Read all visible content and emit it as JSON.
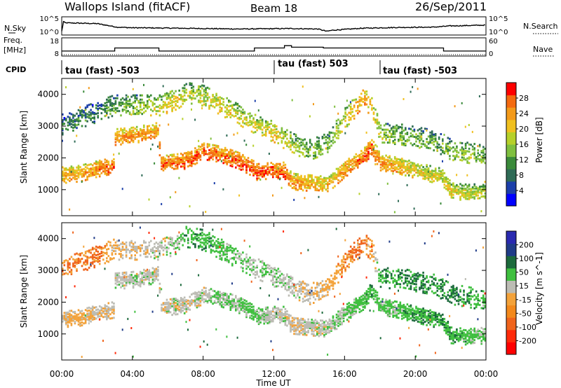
{
  "header": {
    "station": "Wallops Island (fitACF)",
    "beam": "Beam 18",
    "date": "26/Sep/2011"
  },
  "left_labels": {
    "nsky": "N.Sky",
    "freq_line1": "Freq.",
    "freq_line2": "[MHz]",
    "cpid": "CPID"
  },
  "right_labels": {
    "nsearch": "N.Search",
    "nave": "Nave"
  },
  "colors": {
    "power_scale": [
      "#0000ff",
      "#1c3faa",
      "#2f6b56",
      "#3a8a3a",
      "#7fbf3f",
      "#b6d02a",
      "#f0c020",
      "#f39a1a",
      "#f46a10",
      "#ff0000"
    ],
    "velocity_scale": [
      "#2a2ab0",
      "#203c88",
      "#1c6a3c",
      "#3fbf3f",
      "#bcbcb4",
      "#f3a23a",
      "#f3891c",
      "#f0641c",
      "#ff2a0a",
      "#ff0000"
    ]
  },
  "chart_data": [
    {
      "type": "line",
      "name": "noise",
      "ylabel_left": "N.Sky",
      "ylabel_right": "N.Search",
      "ticks_left": [
        "10^5",
        "10^0"
      ],
      "ticks_right": [
        "10^5",
        "10^0"
      ],
      "x_hours": [
        0,
        0.1,
        0.2,
        2,
        3,
        3.1,
        4,
        6,
        8,
        10,
        12,
        13,
        14.5,
        15,
        15.3,
        17,
        19,
        21,
        22,
        24
      ],
      "values_norm": [
        0.15,
        0.78,
        0.7,
        0.65,
        0.45,
        0.42,
        0.38,
        0.36,
        0.33,
        0.3,
        0.32,
        0.33,
        0.3,
        0.15,
        0.22,
        0.35,
        0.4,
        0.42,
        0.5,
        0.55
      ]
    },
    {
      "type": "line",
      "name": "frequency",
      "ylabel_left": "Freq. [MHz]",
      "ylabel_right": "Nave",
      "ticks_left": [
        "18",
        "8"
      ],
      "ticks_right": [
        "60",
        "0"
      ],
      "x_hours": [
        0,
        3.0,
        3.0,
        5.5,
        5.5,
        10.9,
        10.9,
        12.6,
        12.6,
        13.0,
        13.0,
        14.8,
        14.8,
        21.6,
        21.6,
        24
      ],
      "freq_mhz": [
        10.3,
        10.3,
        12.3,
        12.3,
        10.3,
        10.3,
        12.3,
        12.3,
        13.8,
        13.8,
        12.8,
        12.8,
        12.3,
        12.3,
        10.3,
        10.3
      ]
    },
    {
      "type": "table",
      "name": "cpid",
      "segments": [
        {
          "label": "tau (fast) -503",
          "start_hour": 0,
          "end_hour": 12
        },
        {
          "label": "tau (fast) 503",
          "start_hour": 12,
          "end_hour": 18
        },
        {
          "label": "tau (fast) -503",
          "start_hour": 18,
          "end_hour": 24
        }
      ]
    },
    {
      "type": "heatmap",
      "name": "power",
      "ylabel": "Slant Range [km]",
      "colorbar_label": "Power [dB]",
      "colorbar_ticks": [
        "4",
        "8",
        "12",
        "16",
        "20",
        "24",
        "28"
      ],
      "y_ticks": [
        "1000",
        "2000",
        "3000",
        "4000"
      ],
      "ylim_km": [
        180,
        4500
      ],
      "xlim_hours": [
        0,
        24
      ],
      "lower_band": {
        "x_hours": [
          0,
          1,
          2,
          2.9,
          3,
          4,
          5.4,
          5.6,
          7,
          8,
          9,
          10,
          10.8,
          11,
          12,
          12.5,
          13,
          14,
          15,
          16,
          17,
          17.5,
          18,
          19,
          20,
          21.5,
          22,
          23,
          24
        ],
        "range_km": [
          1500,
          1550,
          1700,
          1800,
          2700,
          2750,
          2900,
          1850,
          1950,
          2250,
          2150,
          1950,
          1700,
          1600,
          1650,
          1650,
          1300,
          1250,
          1200,
          1700,
          2050,
          2400,
          1900,
          1800,
          1650,
          1450,
          1000,
          950,
          1000
        ],
        "power_db": [
          22,
          24,
          25,
          27,
          25,
          24,
          23,
          26,
          27,
          28,
          26,
          27,
          28,
          28,
          28,
          27,
          24,
          23,
          22,
          24,
          26,
          28,
          24,
          22,
          20,
          18,
          20,
          18,
          16
        ]
      },
      "upper_band": {
        "x_hours": [
          0,
          1,
          2,
          2.9,
          5.6,
          6.5,
          7,
          8,
          9,
          10,
          11,
          12,
          13,
          14,
          15,
          16,
          17,
          17.5,
          18,
          19,
          20,
          21,
          22,
          23,
          24
        ],
        "range_km": [
          3100,
          3300,
          3500,
          3700,
          3700,
          3900,
          4100,
          4000,
          3700,
          3400,
          3100,
          2850,
          2500,
          2300,
          2500,
          3300,
          3900,
          3700,
          2800,
          2800,
          2700,
          2600,
          2300,
          2200,
          2100
        ],
        "power_db": [
          8,
          10,
          10,
          12,
          18,
          20,
          16,
          18,
          20,
          18,
          18,
          20,
          16,
          14,
          16,
          18,
          24,
          22,
          16,
          14,
          14,
          12,
          14,
          16,
          14
        ]
      }
    },
    {
      "type": "heatmap",
      "name": "velocity",
      "ylabel": "Slant Range [km]",
      "colorbar_label": "Velocity [m s^-1]",
      "colorbar_ticks": [
        "200",
        "100",
        "50",
        "15",
        "-15",
        "-50",
        "-100",
        "-200"
      ],
      "y_ticks": [
        "1000",
        "2000",
        "3000",
        "4000"
      ],
      "ylim_km": [
        180,
        4500
      ],
      "xlim_hours": [
        0,
        24
      ],
      "lower_band": {
        "x_hours": [
          0,
          1,
          2,
          2.9,
          3,
          4,
          5.4,
          5.6,
          7,
          8,
          9,
          10,
          10.8,
          11,
          12,
          12.5,
          13,
          14,
          15,
          16,
          17,
          17.5,
          18,
          19,
          20,
          21.5,
          22,
          23,
          24
        ],
        "range_km": [
          1500,
          1550,
          1700,
          1800,
          2700,
          2750,
          2900,
          1850,
          1950,
          2250,
          2150,
          1950,
          1700,
          1600,
          1650,
          1650,
          1300,
          1250,
          1200,
          1700,
          2050,
          2400,
          1900,
          1800,
          1650,
          1450,
          1000,
          950,
          1000
        ],
        "velocity_ms": [
          -20,
          -30,
          -10,
          -5,
          0,
          5,
          0,
          0,
          0,
          0,
          10,
          20,
          30,
          20,
          0,
          0,
          -10,
          0,
          0,
          20,
          30,
          40,
          20,
          30,
          40,
          50,
          40,
          30,
          20
        ]
      },
      "upper_band": {
        "x_hours": [
          0,
          1,
          2,
          2.9,
          5.6,
          6.5,
          7,
          8,
          9,
          10,
          11,
          12,
          13,
          14,
          15,
          16,
          17,
          17.5,
          18,
          19,
          20,
          21,
          22,
          23,
          24
        ],
        "range_km": [
          3100,
          3300,
          3500,
          3700,
          3700,
          3900,
          4100,
          4000,
          3700,
          3400,
          3100,
          2850,
          2500,
          2300,
          2500,
          3300,
          3900,
          3700,
          2800,
          2800,
          2700,
          2600,
          2300,
          2200,
          2100
        ],
        "velocity_ms": [
          -40,
          -60,
          -50,
          -20,
          0,
          10,
          40,
          40,
          30,
          20,
          10,
          10,
          0,
          -10,
          -30,
          -40,
          -60,
          -40,
          40,
          50,
          60,
          50,
          60,
          40,
          30
        ]
      }
    },
    {
      "type": "table",
      "name": "time_axis",
      "xlabel": "Time UT",
      "tick_labels": [
        "00:00",
        "04:00",
        "08:00",
        "12:00",
        "16:00",
        "20:00",
        "00:00"
      ],
      "tick_hours": [
        0,
        4,
        8,
        12,
        16,
        20,
        24
      ]
    }
  ]
}
